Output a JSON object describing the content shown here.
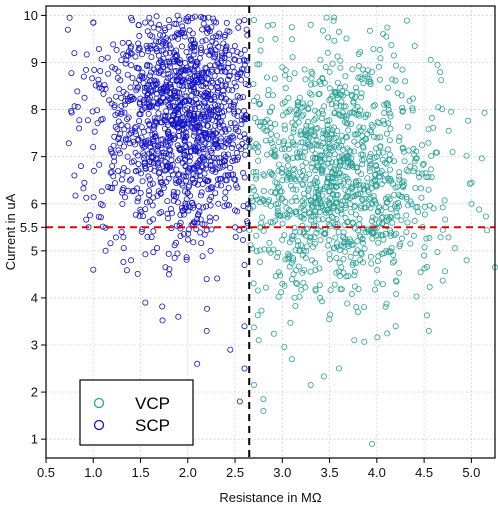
{
  "chart_data": {
    "type": "scatter",
    "title": "",
    "xlabel": "Resistance in MΩ",
    "ylabel": "Current in uA",
    "xlim": [
      0.5,
      5.25
    ],
    "ylim": [
      0.6,
      10.2
    ],
    "xticks": [
      0.5,
      1.0,
      1.5,
      2.0,
      2.5,
      3.0,
      3.5,
      4.0,
      4.5,
      5.0
    ],
    "xtick_labels": [
      "0.5",
      "1.0",
      "1.5",
      "2.0",
      "2.5",
      "3.0",
      "3.5",
      "4.0",
      "4.5",
      "5.0"
    ],
    "yticks": [
      1,
      2,
      3,
      4,
      5,
      5.5,
      6,
      7,
      8,
      9,
      10
    ],
    "ytick_labels": [
      "1",
      "2",
      "3",
      "4",
      "5",
      "5.5",
      "6",
      "7",
      "8",
      "9",
      "10"
    ],
    "grid": true,
    "legend_position": "bottom-left",
    "reference_lines": [
      {
        "orientation": "vertical",
        "x": 2.65,
        "color": "#000000",
        "style": "dashed"
      },
      {
        "orientation": "horizontal",
        "y": 5.5,
        "color": "#e60000",
        "style": "dashed"
      }
    ],
    "series": [
      {
        "name": "VCP",
        "color": "#2aa198",
        "marker": "open-circle",
        "x_range": [
          2.65,
          5.25
        ],
        "y_range": [
          0.85,
          10.0
        ],
        "center": [
          3.55,
          6.6
        ],
        "n_points": 1150,
        "values": [
          [
            2.7,
            9.9
          ],
          [
            2.9,
            9.8
          ],
          [
            3.1,
            9.75
          ],
          [
            3.3,
            9.8
          ],
          [
            3.6,
            9.65
          ],
          [
            4.1,
            9.55
          ],
          [
            4.4,
            9.35
          ],
          [
            3.0,
            8.9
          ],
          [
            3.5,
            8.8
          ],
          [
            3.9,
            8.7
          ],
          [
            4.3,
            8.6
          ],
          [
            4.65,
            8.05
          ],
          [
            2.8,
            7.6
          ],
          [
            3.2,
            7.3
          ],
          [
            3.6,
            7.2
          ],
          [
            4.0,
            7.0
          ],
          [
            4.4,
            6.9
          ],
          [
            4.8,
            7.1
          ],
          [
            3.0,
            6.5
          ],
          [
            3.4,
            6.3
          ],
          [
            3.8,
            6.2
          ],
          [
            4.2,
            6.0
          ],
          [
            4.6,
            5.9
          ],
          [
            5.0,
            6.0
          ],
          [
            2.9,
            5.6
          ],
          [
            3.3,
            5.3
          ],
          [
            3.7,
            5.1
          ],
          [
            4.1,
            5.0
          ],
          [
            4.5,
            4.9
          ],
          [
            4.95,
            4.8
          ],
          [
            5.25,
            4.65
          ],
          [
            3.0,
            4.3
          ],
          [
            3.4,
            4.0
          ],
          [
            3.8,
            3.7
          ],
          [
            4.2,
            3.4
          ],
          [
            4.55,
            3.3
          ],
          [
            2.75,
            3.1
          ],
          [
            3.1,
            2.7
          ],
          [
            3.6,
            2.5
          ],
          [
            2.7,
            2.15
          ],
          [
            2.8,
            1.85
          ],
          [
            3.3,
            2.15
          ],
          [
            2.8,
            1.6
          ],
          [
            3.95,
            0.9
          ]
        ]
      },
      {
        "name": "SCP",
        "color": "#1414c8",
        "marker": "open-circle",
        "x_range": [
          0.72,
          2.65
        ],
        "y_range": [
          1.7,
          10.0
        ],
        "center": [
          1.95,
          7.9
        ],
        "n_points": 1300,
        "values": [
          [
            0.75,
            9.95
          ],
          [
            0.8,
            9.2
          ],
          [
            1.0,
            9.85
          ],
          [
            1.4,
            9.95
          ],
          [
            1.8,
            9.9
          ],
          [
            2.3,
            9.85
          ],
          [
            2.6,
            9.9
          ],
          [
            0.9,
            8.7
          ],
          [
            1.2,
            8.9
          ],
          [
            1.6,
            8.6
          ],
          [
            2.0,
            8.5
          ],
          [
            2.4,
            8.8
          ],
          [
            0.85,
            7.6
          ],
          [
            1.1,
            7.8
          ],
          [
            1.5,
            7.9
          ],
          [
            1.9,
            7.7
          ],
          [
            2.3,
            7.5
          ],
          [
            2.6,
            7.8
          ],
          [
            0.8,
            6.6
          ],
          [
            1.2,
            6.8
          ],
          [
            1.6,
            6.9
          ],
          [
            2.0,
            6.7
          ],
          [
            2.4,
            6.5
          ],
          [
            0.95,
            5.5
          ],
          [
            1.3,
            5.4
          ],
          [
            1.7,
            5.8
          ],
          [
            2.1,
            5.6
          ],
          [
            2.5,
            5.5
          ],
          [
            1.0,
            4.6
          ],
          [
            1.4,
            4.8
          ],
          [
            1.8,
            4.5
          ],
          [
            2.2,
            4.4
          ],
          [
            2.6,
            4.7
          ],
          [
            1.55,
            3.9
          ],
          [
            1.9,
            3.6
          ],
          [
            2.2,
            3.3
          ],
          [
            2.45,
            2.9
          ],
          [
            2.6,
            3.4
          ],
          [
            2.1,
            2.6
          ],
          [
            2.6,
            2.5
          ],
          [
            2.0,
            2.1
          ],
          [
            2.55,
            1.8
          ]
        ]
      }
    ]
  }
}
